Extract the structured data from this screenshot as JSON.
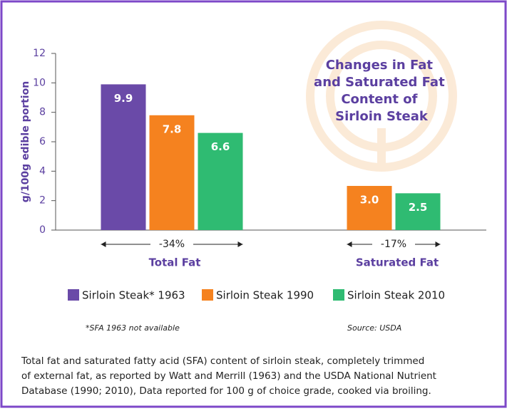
{
  "chart_data": {
    "type": "bar",
    "title": [
      "Changes in Fat",
      "and Saturated Fat",
      "Content of",
      "Sirloin Steak"
    ],
    "y_label": "g/100g edible portion",
    "categories": [
      "Total Fat",
      "Saturated Fat"
    ],
    "series": [
      {
        "name": "Sirloin Steak* 1963",
        "color": "#6a4aa8",
        "values": [
          9.9,
          null
        ],
        "value_labels": [
          "9.9",
          null
        ]
      },
      {
        "name": "Sirloin Steak 1990",
        "color": "#f5821f",
        "values": [
          7.8,
          3.0
        ],
        "value_labels": [
          "7.8",
          "3.0"
        ]
      },
      {
        "name": "Sirloin Steak 2010",
        "color": "#2fbb72",
        "values": [
          6.6,
          2.5
        ],
        "value_labels": [
          "6.6",
          "2.5"
        ]
      }
    ],
    "change_labels": [
      "-34%",
      "-17%"
    ],
    "ylim": [
      0,
      12
    ],
    "yticks": [
      0,
      2,
      4,
      6,
      8,
      10,
      12
    ],
    "footnote": "*SFA 1963 not available",
    "source": "Source: USDA",
    "caption": [
      "Total fat and saturated fatty acid (SFA) content of sirloin steak, completely trimmed",
      "of external fat, as reported by Watt and Merrill (1963) and the USDA National Nutrient",
      "Database (1990; 2010), Data reported for 100 g of choice grade, cooked via broiling."
    ]
  }
}
